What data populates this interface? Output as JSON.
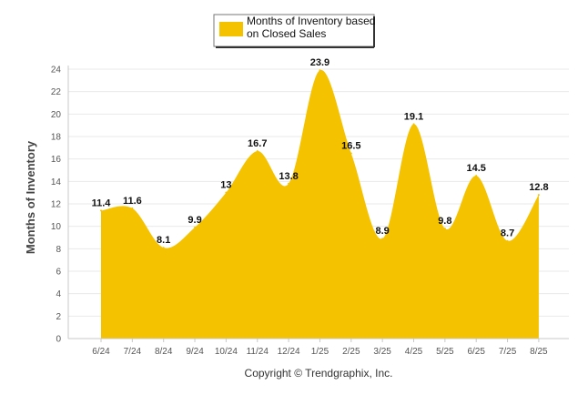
{
  "legend": {
    "line1": "Months of Inventory based",
    "line2": "on Closed Sales"
  },
  "footer": {
    "copyright": "Copyright © Trendgraphix, Inc."
  },
  "chart_data": {
    "type": "area",
    "title": "",
    "xlabel": "",
    "ylabel": "Months of Inventory",
    "ylim": [
      0,
      24
    ],
    "y_ticks": [
      0,
      2,
      4,
      6,
      8,
      10,
      12,
      14,
      16,
      18,
      20,
      22,
      24
    ],
    "grid": true,
    "legend_position": "top-center",
    "categories": [
      "6/24",
      "7/24",
      "8/24",
      "9/24",
      "10/24",
      "11/24",
      "12/24",
      "1/25",
      "2/25",
      "3/25",
      "4/25",
      "5/25",
      "6/25",
      "7/25",
      "8/25"
    ],
    "series": [
      {
        "name": "Months of Inventory based on Closed Sales",
        "color": "#F5C200",
        "values": [
          11.4,
          11.6,
          8.1,
          9.9,
          13,
          16.7,
          13.8,
          23.9,
          16.5,
          8.9,
          19.1,
          9.8,
          14.5,
          8.7,
          12.8
        ],
        "labels": [
          "11.4",
          "11.6",
          "8.1",
          "9.9",
          "13",
          "16.7",
          "13.8",
          "23.9",
          "16.5",
          "8.9",
          "19.1",
          "9.8",
          "14.5",
          "8.7",
          "12.8"
        ]
      }
    ]
  }
}
